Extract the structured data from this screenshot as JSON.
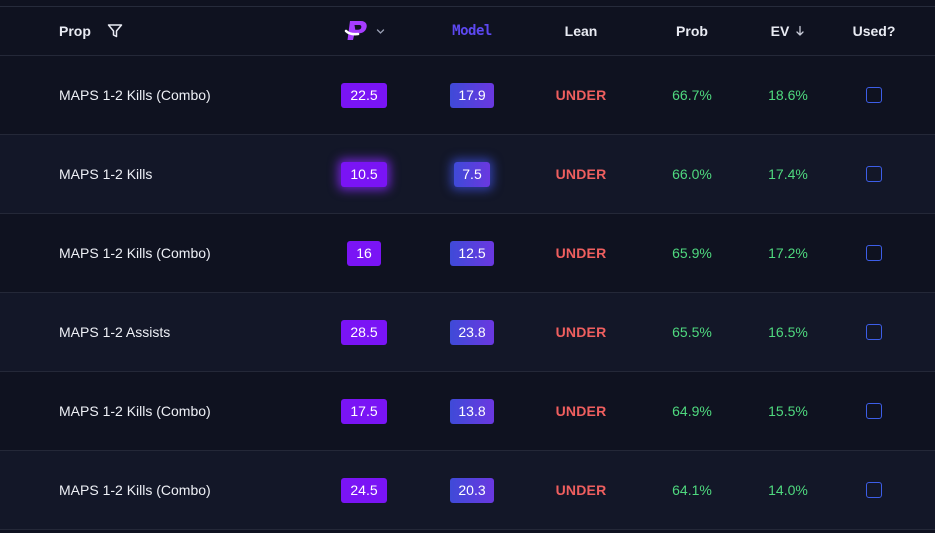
{
  "header": {
    "prop": "Prop",
    "model": "Model",
    "lean": "Lean",
    "prob": "Prob",
    "ev": "EV",
    "used": "Used?"
  },
  "colors": {
    "pp_badge": "#7a14f5",
    "model_badge": "#4a44dc",
    "under": "#ef5f5f",
    "positive": "#4fd97f",
    "checkbox": "#3d5ee8"
  },
  "rows": [
    {
      "prop": "MAPS 1-2 Kills (Combo)",
      "pp": "22.5",
      "model": "17.9",
      "lean": "UNDER",
      "prob": "66.7%",
      "ev": "18.6%"
    },
    {
      "prop": "MAPS 1-2 Kills",
      "pp": "10.5",
      "model": "7.5",
      "lean": "UNDER",
      "prob": "66.0%",
      "ev": "17.4%"
    },
    {
      "prop": "MAPS 1-2 Kills (Combo)",
      "pp": "16",
      "model": "12.5",
      "lean": "UNDER",
      "prob": "65.9%",
      "ev": "17.2%"
    },
    {
      "prop": "MAPS 1-2 Assists",
      "pp": "28.5",
      "model": "23.8",
      "lean": "UNDER",
      "prob": "65.5%",
      "ev": "16.5%"
    },
    {
      "prop": "MAPS 1-2 Kills (Combo)",
      "pp": "17.5",
      "model": "13.8",
      "lean": "UNDER",
      "prob": "64.9%",
      "ev": "15.5%"
    },
    {
      "prop": "MAPS 1-2 Kills (Combo)",
      "pp": "24.5",
      "model": "20.3",
      "lean": "UNDER",
      "prob": "64.1%",
      "ev": "14.0%"
    }
  ]
}
